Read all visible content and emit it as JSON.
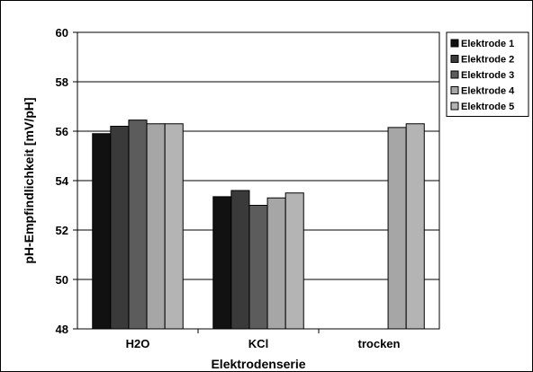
{
  "chart_data": {
    "type": "bar",
    "title": "",
    "xlabel": "Elektrodenserie",
    "ylabel": "pH-Empfindlichkeit [mV/pH]",
    "ylim": [
      48,
      60
    ],
    "yticks": [
      48,
      50,
      52,
      54,
      56,
      58,
      60
    ],
    "ytick_labels": [
      "48",
      "50",
      "52",
      "54",
      "56",
      "58",
      "60"
    ],
    "categories": [
      "H2O",
      "KCl",
      "trocken"
    ],
    "grid": true,
    "legend_position": "right",
    "series": [
      {
        "name": "Elektrode 1",
        "color": "#111111",
        "values": [
          55.9,
          53.35,
          null
        ]
      },
      {
        "name": "Elektrode 2",
        "color": "#3a3a3a",
        "values": [
          56.2,
          53.6,
          null
        ]
      },
      {
        "name": "Elektrode 3",
        "color": "#5c5c5c",
        "values": [
          56.45,
          53.0,
          null
        ]
      },
      {
        "name": "Elektrode 4",
        "color": "#a6a6a6",
        "values": [
          56.3,
          53.3,
          56.15
        ]
      },
      {
        "name": "Elektrode 5",
        "color": "#b4b4b4",
        "values": [
          56.3,
          53.5,
          56.3
        ]
      }
    ]
  }
}
